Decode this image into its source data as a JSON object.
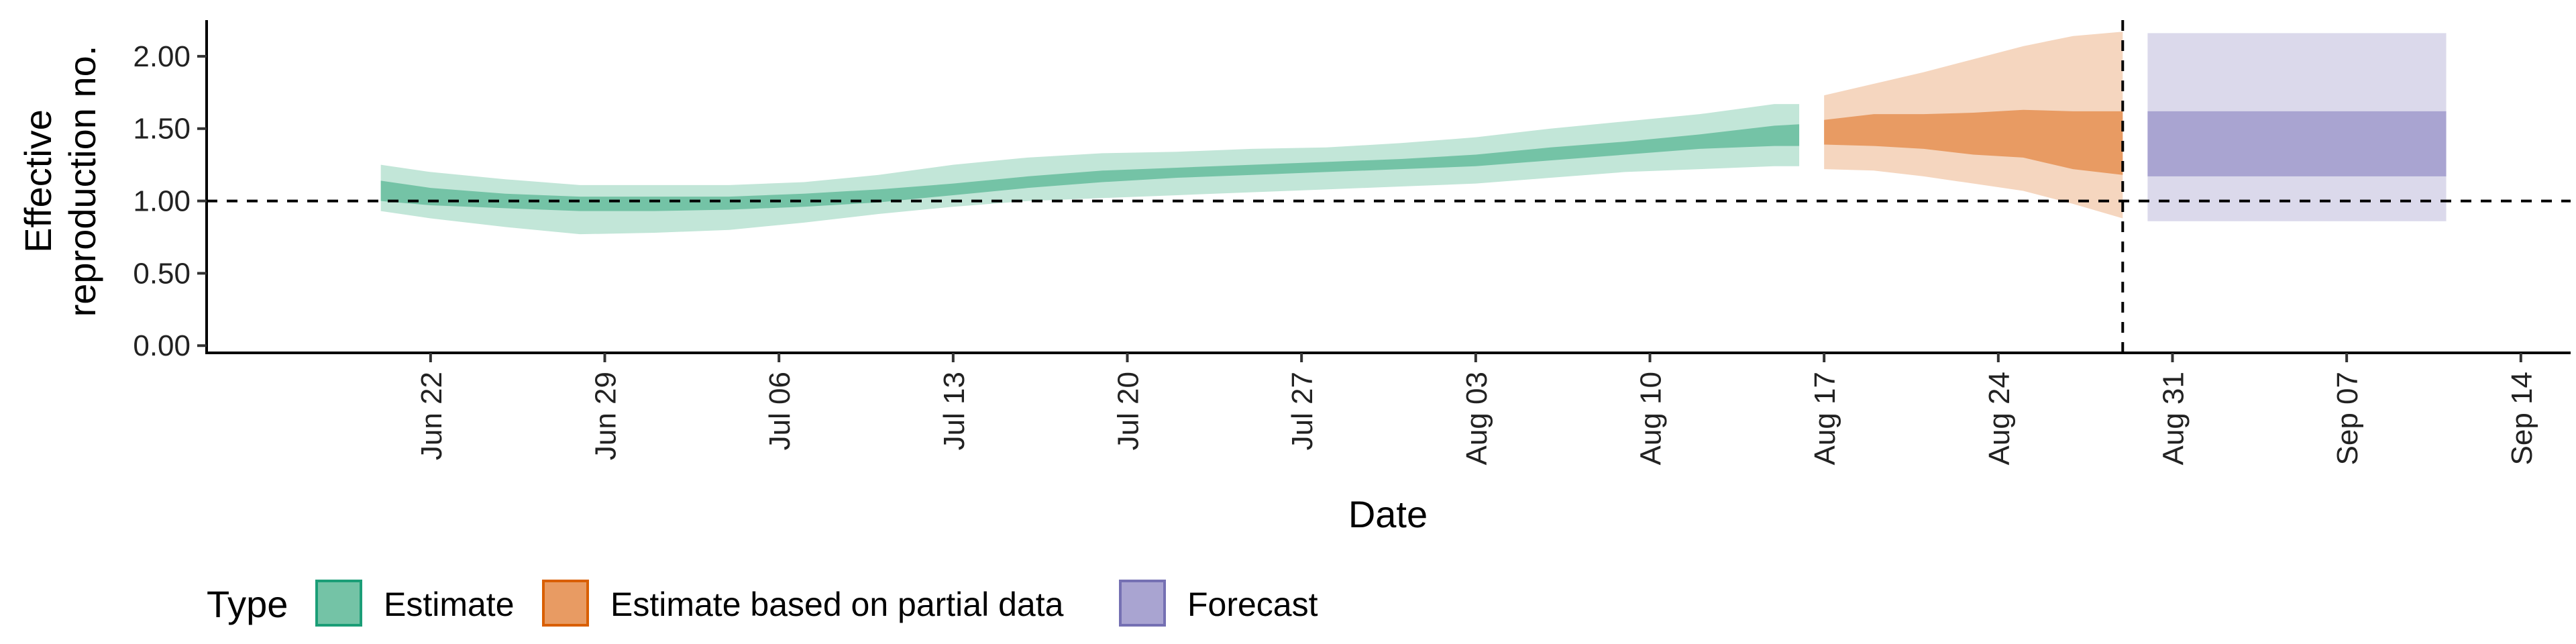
{
  "chart_data": {
    "type": "area",
    "xlabel": "Date",
    "ylabel_lines": [
      "Effective",
      "reproduction no."
    ],
    "ylim": [
      -0.05,
      2.25
    ],
    "xlim": [
      "2022-06-13",
      "2022-09-16"
    ],
    "grid": false,
    "y_ticks": [
      0.0,
      0.5,
      1.0,
      1.5,
      2.0
    ],
    "y_tick_labels": [
      "0.00",
      "0.50",
      "1.00",
      "1.50",
      "2.00"
    ],
    "x_ticks": [
      "2022-06-22",
      "2022-06-29",
      "2022-07-06",
      "2022-07-13",
      "2022-07-20",
      "2022-07-27",
      "2022-08-03",
      "2022-08-10",
      "2022-08-17",
      "2022-08-24",
      "2022-08-31",
      "2022-09-07",
      "2022-09-14"
    ],
    "x_tick_labels": [
      "Jun 22",
      "Jun 29",
      "Jul 06",
      "Jul 13",
      "Jul 20",
      "Jul 27",
      "Aug 03",
      "Aug 10",
      "Aug 17",
      "Aug 24",
      "Aug 31",
      "Sep 07",
      "Sep 14"
    ],
    "reference_hline": 1.0,
    "reference_vline": "2022-08-29",
    "legend": {
      "title": "Type",
      "position": "bottom",
      "entries": [
        "Estimate",
        "Estimate based on partial data",
        "Forecast"
      ]
    },
    "colors": {
      "estimate_inner": "#74c3a6",
      "estimate_outer": "#c2e6d8",
      "partial_inner": "#e89b63",
      "partial_outer": "#f5d6bf",
      "forecast_inner": "#a9a4d1",
      "forecast_outer": "#dbd9eb",
      "estimate_border": "#1b9e77",
      "partial_border": "#d95f02",
      "forecast_border": "#7570b3"
    },
    "series": [
      {
        "name": "Estimate",
        "x": [
          "2022-06-20",
          "2022-06-22",
          "2022-06-25",
          "2022-06-28",
          "2022-07-01",
          "2022-07-04",
          "2022-07-07",
          "2022-07-10",
          "2022-07-13",
          "2022-07-16",
          "2022-07-19",
          "2022-07-22",
          "2022-07-25",
          "2022-07-28",
          "2022-07-31",
          "2022-08-03",
          "2022-08-06",
          "2022-08-09",
          "2022-08-12",
          "2022-08-15",
          "2022-08-16"
        ],
        "inner_upper": [
          1.14,
          1.09,
          1.05,
          1.03,
          1.03,
          1.03,
          1.05,
          1.08,
          1.12,
          1.17,
          1.21,
          1.23,
          1.25,
          1.27,
          1.29,
          1.32,
          1.37,
          1.41,
          1.46,
          1.52,
          1.53
        ],
        "inner_lower": [
          1.0,
          0.97,
          0.95,
          0.93,
          0.93,
          0.94,
          0.96,
          0.99,
          1.04,
          1.09,
          1.13,
          1.16,
          1.18,
          1.2,
          1.22,
          1.24,
          1.28,
          1.32,
          1.36,
          1.38,
          1.38
        ],
        "outer_upper": [
          1.25,
          1.2,
          1.15,
          1.11,
          1.11,
          1.11,
          1.13,
          1.18,
          1.25,
          1.3,
          1.33,
          1.34,
          1.36,
          1.37,
          1.4,
          1.44,
          1.5,
          1.55,
          1.6,
          1.67,
          1.67
        ],
        "outer_lower": [
          0.93,
          0.88,
          0.82,
          0.77,
          0.78,
          0.8,
          0.85,
          0.91,
          0.96,
          1.0,
          1.02,
          1.04,
          1.06,
          1.08,
          1.1,
          1.12,
          1.16,
          1.2,
          1.22,
          1.24,
          1.24
        ]
      },
      {
        "name": "Estimate based on partial data",
        "x": [
          "2022-08-17",
          "2022-08-19",
          "2022-08-21",
          "2022-08-23",
          "2022-08-25",
          "2022-08-27",
          "2022-08-29"
        ],
        "inner_upper": [
          1.56,
          1.6,
          1.6,
          1.61,
          1.63,
          1.62,
          1.62
        ],
        "inner_lower": [
          1.39,
          1.38,
          1.36,
          1.32,
          1.3,
          1.22,
          1.18
        ],
        "outer_upper": [
          1.73,
          1.81,
          1.89,
          1.98,
          2.07,
          2.14,
          2.17
        ],
        "outer_lower": [
          1.22,
          1.21,
          1.17,
          1.12,
          1.07,
          0.98,
          0.88
        ]
      },
      {
        "name": "Forecast",
        "x": [
          "2022-08-30",
          "2022-09-11"
        ],
        "inner_upper": [
          1.62,
          1.62
        ],
        "inner_lower": [
          1.17,
          1.17
        ],
        "outer_upper": [
          2.16,
          2.16
        ],
        "outer_lower": [
          0.86,
          0.86
        ]
      }
    ]
  }
}
